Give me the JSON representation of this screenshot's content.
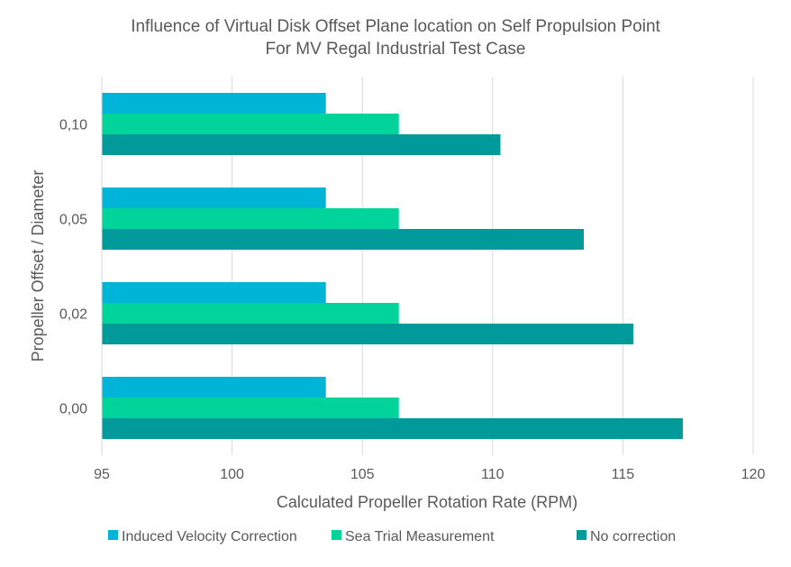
{
  "chart_data": {
    "type": "bar",
    "orientation": "horizontal",
    "title": "Influence of Virtual Disk Offset Plane location on Self Propulsion Point",
    "subtitle": "For MV Regal Industrial Test Case",
    "xlabel": "Calculated Propeller Rotation Rate (RPM)",
    "ylabel": "Propeller Offset / Diameter",
    "xlim": [
      95,
      120
    ],
    "x_ticks": [
      "95",
      "100",
      "105",
      "110",
      "115",
      "120"
    ],
    "categories": [
      "0,00",
      "0,02",
      "0,05",
      "0,10"
    ],
    "series": [
      {
        "name": "Induced Velocity Correction",
        "color": "#00B4D8",
        "values": [
          103.6,
          103.6,
          103.6,
          103.6
        ]
      },
      {
        "name": "Sea Trial Measurement",
        "color": "#00D49A",
        "values": [
          106.4,
          106.4,
          106.4,
          106.4
        ]
      },
      {
        "name": "No correction",
        "color": "#009A9A",
        "values": [
          117.3,
          115.4,
          113.5,
          110.3
        ]
      }
    ],
    "grid": "vertical",
    "legend_position": "bottom"
  }
}
